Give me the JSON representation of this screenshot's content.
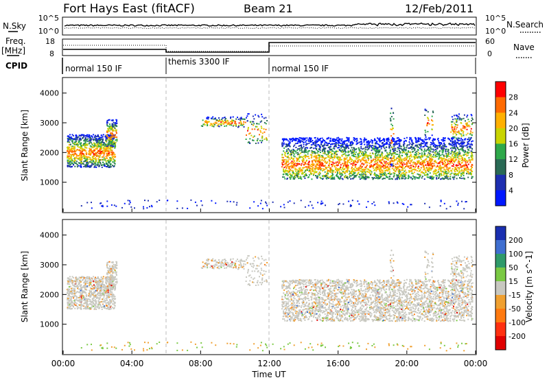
{
  "header": {
    "title": "Fort Hays East (fitACF)",
    "beam": "Beam 21",
    "date": "12/Feb/2011"
  },
  "left_labels": {
    "nsky": "N.Sky",
    "freq": "Freq.",
    "mhz": "[MHz]",
    "cpid": "CPID"
  },
  "right_labels": {
    "nsearch": "N.Search",
    "nave": "Nave"
  },
  "noise_panel": {
    "ticks_left": [
      "10^5",
      "10^0"
    ],
    "ticks_right": [
      "10^5",
      "10^0"
    ]
  },
  "freq_panel": {
    "ticks_left": [
      "18",
      "8"
    ],
    "ticks_right": [
      "60",
      "0"
    ]
  },
  "cpid_segments": [
    {
      "label": "normal 150 IF",
      "start_hr": 0,
      "end_hr": 6
    },
    {
      "label": "themis 3300 IF",
      "start_hr": 6,
      "end_hr": 12
    },
    {
      "label": "normal 150 IF",
      "start_hr": 12,
      "end_hr": 24
    }
  ],
  "chart_data": [
    {
      "type": "heatmap",
      "name": "power",
      "ylabel": "Slant Range [km]",
      "xlabel": "",
      "xlim_hr": [
        0,
        24
      ],
      "ylim": [
        0,
        4500
      ],
      "yticks": [
        1000,
        2000,
        3000,
        4000
      ],
      "colorbar": {
        "label": "Power [dB]",
        "ticks": [
          "28",
          "24",
          "20",
          "16",
          "12",
          "8",
          "4"
        ],
        "colors": [
          "#ff0000",
          "#ff6a00",
          "#ffb000",
          "#c9d400",
          "#2ea84a",
          "#2a6a55",
          "#1e2fb0",
          "#0018ff"
        ]
      }
    },
    {
      "type": "heatmap",
      "name": "velocity",
      "ylabel": "Slant Range [km]",
      "xlabel": "Time UT",
      "xlim_hr": [
        0,
        24
      ],
      "ylim": [
        0,
        4500
      ],
      "yticks": [
        1000,
        2000,
        3000,
        4000
      ],
      "xticks": [
        "00:00",
        "04:00",
        "08:00",
        "12:00",
        "16:00",
        "20:00",
        "00:00"
      ],
      "colorbar": {
        "label": "Velocity [m s^-1]",
        "ticks": [
          "200",
          "100",
          "50",
          "15",
          "-15",
          "-50",
          "-100",
          "-200"
        ],
        "colors": [
          "#1a2fb0",
          "#3f6fd0",
          "#2f9a6a",
          "#7ac943",
          "#c8c8c0",
          "#f0a030",
          "#ff7a10",
          "#ff3010",
          "#e00000"
        ]
      }
    }
  ]
}
